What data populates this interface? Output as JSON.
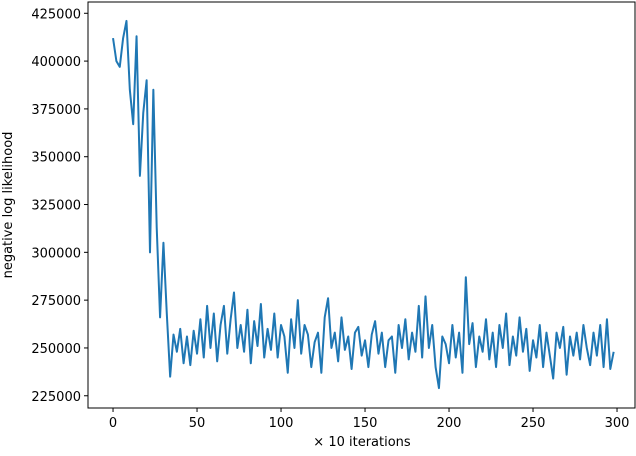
{
  "chart_data": {
    "type": "line",
    "xlabel": "× 10 iterations",
    "ylabel": "negative log likelihood",
    "xlim": [
      -14.9,
      310.7
    ],
    "ylim": [
      218600,
      430900
    ],
    "xticks": [
      0,
      50,
      100,
      150,
      200,
      250,
      300
    ],
    "yticks": [
      225000,
      250000,
      275000,
      300000,
      325000,
      350000,
      375000,
      400000,
      425000
    ],
    "x": [
      0,
      2,
      4,
      6,
      8,
      10,
      12,
      14,
      16,
      18,
      20,
      22,
      24,
      26,
      28,
      30,
      32,
      34,
      36,
      38,
      40,
      42,
      44,
      46,
      48,
      50,
      52,
      54,
      56,
      58,
      60,
      62,
      64,
      66,
      68,
      70,
      72,
      74,
      76,
      78,
      80,
      82,
      84,
      86,
      88,
      90,
      92,
      94,
      96,
      98,
      100,
      102,
      104,
      106,
      108,
      110,
      112,
      114,
      116,
      118,
      120,
      122,
      124,
      126,
      128,
      130,
      132,
      134,
      136,
      138,
      140,
      142,
      144,
      146,
      148,
      150,
      152,
      154,
      156,
      158,
      160,
      162,
      164,
      166,
      168,
      170,
      172,
      174,
      176,
      178,
      180,
      182,
      184,
      186,
      188,
      190,
      192,
      194,
      196,
      198,
      200,
      202,
      204,
      206,
      208,
      210,
      212,
      214,
      216,
      218,
      220,
      222,
      224,
      226,
      228,
      230,
      232,
      234,
      236,
      238,
      240,
      242,
      244,
      246,
      248,
      250,
      252,
      254,
      256,
      258,
      260,
      262,
      264,
      266,
      268,
      270,
      272,
      274,
      276,
      278,
      280,
      282,
      284,
      286,
      288,
      290,
      292,
      294,
      296,
      298
    ],
    "series": [
      {
        "color": "#1f77b4",
        "values": [
          412000,
          400000,
          397000,
          412000,
          421000,
          385000,
          367000,
          413000,
          340000,
          373000,
          390000,
          300000,
          385000,
          313000,
          266000,
          305000,
          268000,
          235000,
          257000,
          248000,
          260000,
          242000,
          256000,
          241000,
          259000,
          247000,
          265000,
          245000,
          272000,
          250000,
          268000,
          243000,
          262000,
          272000,
          247000,
          265000,
          279000,
          250000,
          262000,
          248000,
          270000,
          242000,
          264000,
          251000,
          273000,
          245000,
          260000,
          249000,
          268000,
          245000,
          262000,
          256000,
          237000,
          265000,
          250000,
          275000,
          247000,
          262000,
          257000,
          240000,
          253000,
          258000,
          237000,
          266000,
          276000,
          250000,
          258000,
          243000,
          266000,
          249000,
          256000,
          239000,
          258000,
          261000,
          246000,
          254000,
          240000,
          257000,
          264000,
          247000,
          258000,
          240000,
          254000,
          256000,
          237000,
          262000,
          250000,
          265000,
          244000,
          258000,
          248000,
          272000,
          245000,
          277000,
          250000,
          262000,
          240000,
          229000,
          256000,
          252000,
          242000,
          262000,
          245000,
          258000,
          237000,
          287000,
          252000,
          263000,
          240000,
          256000,
          248000,
          265000,
          244000,
          258000,
          240000,
          262000,
          250000,
          268000,
          241000,
          256000,
          246000,
          266000,
          248000,
          260000,
          238000,
          254000,
          245000,
          262000,
          240000,
          258000,
          246000,
          234000,
          258000,
          250000,
          261000,
          236000,
          256000,
          246000,
          258000,
          244000,
          262000,
          250000,
          241000,
          258000,
          246000,
          262000,
          240000,
          265000,
          239000,
          248000
        ]
      }
    ]
  }
}
